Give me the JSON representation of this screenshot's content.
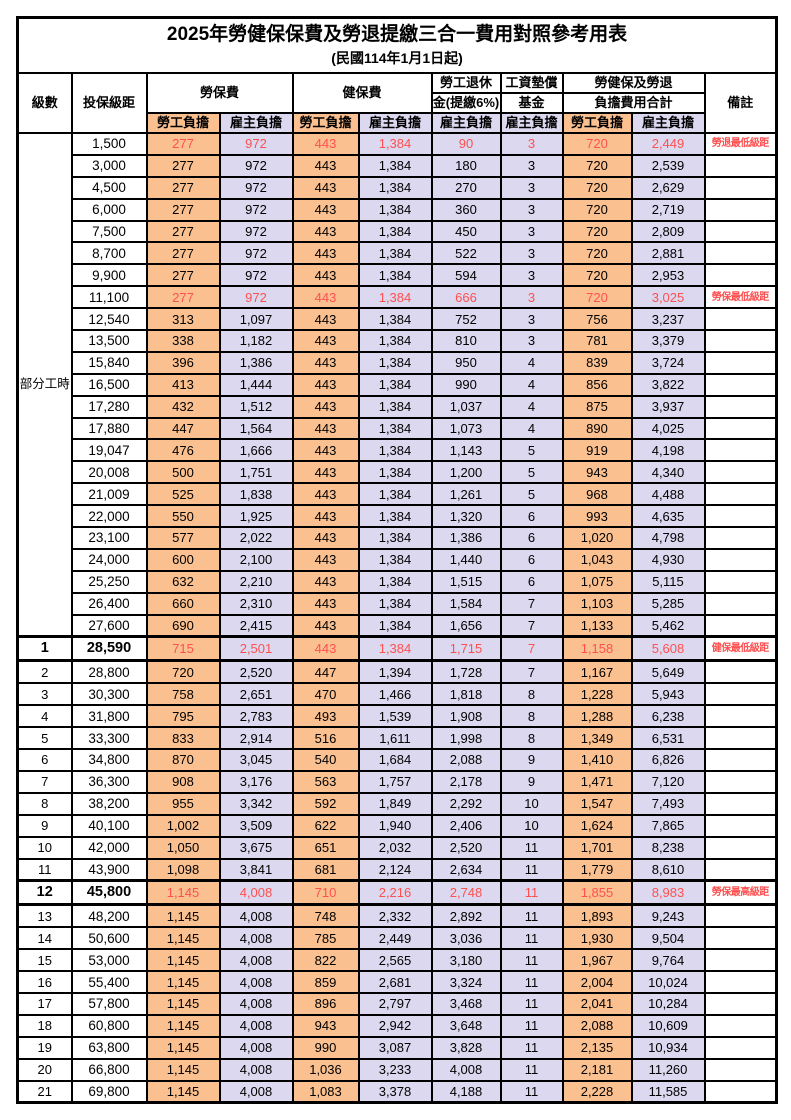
{
  "title": "2025年勞健保保費及勞退提繳三合一費用對照參考用表",
  "subtitle": "(民國114年1月1日起)",
  "header": {
    "level": "級數",
    "bracket": "投保級距",
    "labor_insurance": "勞保費",
    "health_insurance": "健保費",
    "pension_line1": "勞工退休",
    "pension_line2": "金(提繳6%)",
    "wage_fund_line1": "工資墊償",
    "wage_fund_line2": "基金",
    "total_line1": "勞健保及勞退",
    "total_line2": "負擔費用合計",
    "note": "備註",
    "employee_burden": "勞工負擔",
    "employer_burden": "雇主負擔"
  },
  "part_time_label": "部分工時",
  "colors": {
    "employee_bg": "#FAC090",
    "employer_bg": "#DBD8EF",
    "highlight_text": "#FF5050",
    "border": "#000000"
  },
  "part_time_rows": [
    {
      "bracket": "1,500",
      "values": [
        "277",
        "972",
        "443",
        "1,384",
        "90",
        "3",
        "720",
        "2,449"
      ],
      "note": "勞退最低級距",
      "red": true
    },
    {
      "bracket": "3,000",
      "values": [
        "277",
        "972",
        "443",
        "1,384",
        "180",
        "3",
        "720",
        "2,539"
      ],
      "note": ""
    },
    {
      "bracket": "4,500",
      "values": [
        "277",
        "972",
        "443",
        "1,384",
        "270",
        "3",
        "720",
        "2,629"
      ],
      "note": ""
    },
    {
      "bracket": "6,000",
      "values": [
        "277",
        "972",
        "443",
        "1,384",
        "360",
        "3",
        "720",
        "2,719"
      ],
      "note": ""
    },
    {
      "bracket": "7,500",
      "values": [
        "277",
        "972",
        "443",
        "1,384",
        "450",
        "3",
        "720",
        "2,809"
      ],
      "note": ""
    },
    {
      "bracket": "8,700",
      "values": [
        "277",
        "972",
        "443",
        "1,384",
        "522",
        "3",
        "720",
        "2,881"
      ],
      "note": ""
    },
    {
      "bracket": "9,900",
      "values": [
        "277",
        "972",
        "443",
        "1,384",
        "594",
        "3",
        "720",
        "2,953"
      ],
      "note": ""
    },
    {
      "bracket": "11,100",
      "values": [
        "277",
        "972",
        "443",
        "1,384",
        "666",
        "3",
        "720",
        "3,025"
      ],
      "note": "勞保最低級距",
      "red": true
    },
    {
      "bracket": "12,540",
      "values": [
        "313",
        "1,097",
        "443",
        "1,384",
        "752",
        "3",
        "756",
        "3,237"
      ],
      "note": ""
    },
    {
      "bracket": "13,500",
      "values": [
        "338",
        "1,182",
        "443",
        "1,384",
        "810",
        "3",
        "781",
        "3,379"
      ],
      "note": ""
    },
    {
      "bracket": "15,840",
      "values": [
        "396",
        "1,386",
        "443",
        "1,384",
        "950",
        "4",
        "839",
        "3,724"
      ],
      "note": ""
    },
    {
      "bracket": "16,500",
      "values": [
        "413",
        "1,444",
        "443",
        "1,384",
        "990",
        "4",
        "856",
        "3,822"
      ],
      "note": ""
    },
    {
      "bracket": "17,280",
      "values": [
        "432",
        "1,512",
        "443",
        "1,384",
        "1,037",
        "4",
        "875",
        "3,937"
      ],
      "note": ""
    },
    {
      "bracket": "17,880",
      "values": [
        "447",
        "1,564",
        "443",
        "1,384",
        "1,073",
        "4",
        "890",
        "4,025"
      ],
      "note": ""
    },
    {
      "bracket": "19,047",
      "values": [
        "476",
        "1,666",
        "443",
        "1,384",
        "1,143",
        "5",
        "919",
        "4,198"
      ],
      "note": ""
    },
    {
      "bracket": "20,008",
      "values": [
        "500",
        "1,751",
        "443",
        "1,384",
        "1,200",
        "5",
        "943",
        "4,340"
      ],
      "note": ""
    },
    {
      "bracket": "21,009",
      "values": [
        "525",
        "1,838",
        "443",
        "1,384",
        "1,261",
        "5",
        "968",
        "4,488"
      ],
      "note": ""
    },
    {
      "bracket": "22,000",
      "values": [
        "550",
        "1,925",
        "443",
        "1,384",
        "1,320",
        "6",
        "993",
        "4,635"
      ],
      "note": ""
    },
    {
      "bracket": "23,100",
      "values": [
        "577",
        "2,022",
        "443",
        "1,384",
        "1,386",
        "6",
        "1,020",
        "4,798"
      ],
      "note": ""
    },
    {
      "bracket": "24,000",
      "values": [
        "600",
        "2,100",
        "443",
        "1,384",
        "1,440",
        "6",
        "1,043",
        "4,930"
      ],
      "note": ""
    },
    {
      "bracket": "25,250",
      "values": [
        "632",
        "2,210",
        "443",
        "1,384",
        "1,515",
        "6",
        "1,075",
        "5,115"
      ],
      "note": ""
    },
    {
      "bracket": "26,400",
      "values": [
        "660",
        "2,310",
        "443",
        "1,384",
        "1,584",
        "7",
        "1,103",
        "5,285"
      ],
      "note": ""
    },
    {
      "bracket": "27,600",
      "values": [
        "690",
        "2,415",
        "443",
        "1,384",
        "1,656",
        "7",
        "1,133",
        "5,462"
      ],
      "note": ""
    }
  ],
  "level_rows": [
    {
      "level": "1",
      "bracket": "28,590",
      "values": [
        "715",
        "2,501",
        "443",
        "1,384",
        "1,715",
        "7",
        "1,158",
        "5,608"
      ],
      "note": "健保最低級距",
      "red": true,
      "bold": true,
      "thick": true
    },
    {
      "level": "2",
      "bracket": "28,800",
      "values": [
        "720",
        "2,520",
        "447",
        "1,394",
        "1,728",
        "7",
        "1,167",
        "5,649"
      ],
      "note": ""
    },
    {
      "level": "3",
      "bracket": "30,300",
      "values": [
        "758",
        "2,651",
        "470",
        "1,466",
        "1,818",
        "8",
        "1,228",
        "5,943"
      ],
      "note": ""
    },
    {
      "level": "4",
      "bracket": "31,800",
      "values": [
        "795",
        "2,783",
        "493",
        "1,539",
        "1,908",
        "8",
        "1,288",
        "6,238"
      ],
      "note": ""
    },
    {
      "level": "5",
      "bracket": "33,300",
      "values": [
        "833",
        "2,914",
        "516",
        "1,611",
        "1,998",
        "8",
        "1,349",
        "6,531"
      ],
      "note": ""
    },
    {
      "level": "6",
      "bracket": "34,800",
      "values": [
        "870",
        "3,045",
        "540",
        "1,684",
        "2,088",
        "9",
        "1,410",
        "6,826"
      ],
      "note": ""
    },
    {
      "level": "7",
      "bracket": "36,300",
      "values": [
        "908",
        "3,176",
        "563",
        "1,757",
        "2,178",
        "9",
        "1,471",
        "7,120"
      ],
      "note": ""
    },
    {
      "level": "8",
      "bracket": "38,200",
      "values": [
        "955",
        "3,342",
        "592",
        "1,849",
        "2,292",
        "10",
        "1,547",
        "7,493"
      ],
      "note": ""
    },
    {
      "level": "9",
      "bracket": "40,100",
      "values": [
        "1,002",
        "3,509",
        "622",
        "1,940",
        "2,406",
        "10",
        "1,624",
        "7,865"
      ],
      "note": ""
    },
    {
      "level": "10",
      "bracket": "42,000",
      "values": [
        "1,050",
        "3,675",
        "651",
        "2,032",
        "2,520",
        "11",
        "1,701",
        "8,238"
      ],
      "note": ""
    },
    {
      "level": "11",
      "bracket": "43,900",
      "values": [
        "1,098",
        "3,841",
        "681",
        "2,124",
        "2,634",
        "11",
        "1,779",
        "8,610"
      ],
      "note": ""
    },
    {
      "level": "12",
      "bracket": "45,800",
      "values": [
        "1,145",
        "4,008",
        "710",
        "2,216",
        "2,748",
        "11",
        "1,855",
        "8,983"
      ],
      "note": "勞保最高級距",
      "red": true,
      "bold": true,
      "thick": true
    },
    {
      "level": "13",
      "bracket": "48,200",
      "values": [
        "1,145",
        "4,008",
        "748",
        "2,332",
        "2,892",
        "11",
        "1,893",
        "9,243"
      ],
      "note": ""
    },
    {
      "level": "14",
      "bracket": "50,600",
      "values": [
        "1,145",
        "4,008",
        "785",
        "2,449",
        "3,036",
        "11",
        "1,930",
        "9,504"
      ],
      "note": ""
    },
    {
      "level": "15",
      "bracket": "53,000",
      "values": [
        "1,145",
        "4,008",
        "822",
        "2,565",
        "3,180",
        "11",
        "1,967",
        "9,764"
      ],
      "note": ""
    },
    {
      "level": "16",
      "bracket": "55,400",
      "values": [
        "1,145",
        "4,008",
        "859",
        "2,681",
        "3,324",
        "11",
        "2,004",
        "10,024"
      ],
      "note": ""
    },
    {
      "level": "17",
      "bracket": "57,800",
      "values": [
        "1,145",
        "4,008",
        "896",
        "2,797",
        "3,468",
        "11",
        "2,041",
        "10,284"
      ],
      "note": ""
    },
    {
      "level": "18",
      "bracket": "60,800",
      "values": [
        "1,145",
        "4,008",
        "943",
        "2,942",
        "3,648",
        "11",
        "2,088",
        "10,609"
      ],
      "note": ""
    },
    {
      "level": "19",
      "bracket": "63,800",
      "values": [
        "1,145",
        "4,008",
        "990",
        "3,087",
        "3,828",
        "11",
        "2,135",
        "10,934"
      ],
      "note": ""
    },
    {
      "level": "20",
      "bracket": "66,800",
      "values": [
        "1,145",
        "4,008",
        "1,036",
        "3,233",
        "4,008",
        "11",
        "2,181",
        "11,260"
      ],
      "note": ""
    },
    {
      "level": "21",
      "bracket": "69,800",
      "values": [
        "1,145",
        "4,008",
        "1,083",
        "3,378",
        "4,188",
        "11",
        "2,228",
        "11,585"
      ],
      "note": ""
    }
  ]
}
